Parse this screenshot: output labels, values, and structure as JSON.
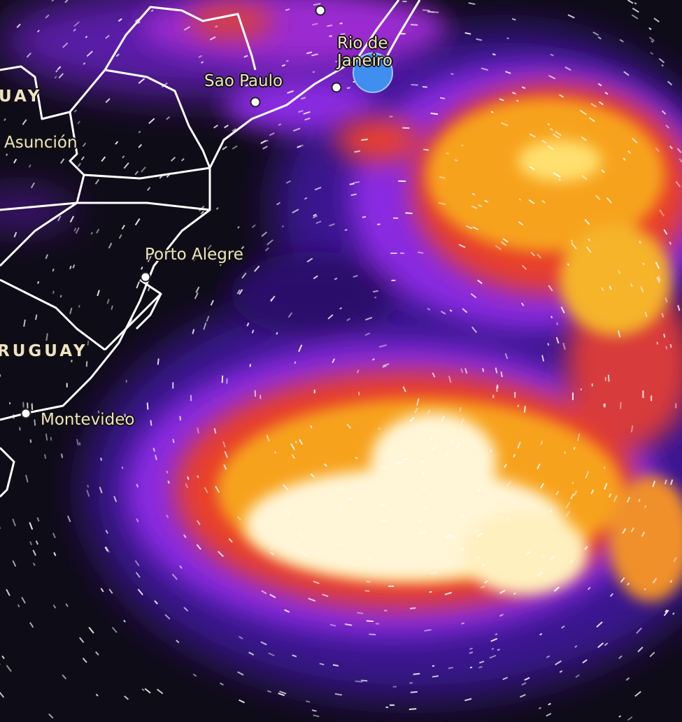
{
  "map": {
    "layer": "precipitation-wind",
    "colors": {
      "background": "#0e0c16",
      "low": "#3a1590",
      "mid": "#8a2be2",
      "high": "#e8402a",
      "higher": "#f7a21b",
      "peak": "#fff6d8",
      "borders": "#ffffff",
      "label": "#efe3c4",
      "location_marker": "#3f8ef0"
    },
    "countries": [
      {
        "id": "paraguay",
        "label": "UAY"
      },
      {
        "id": "uruguay",
        "label": "RUGUAY"
      }
    ],
    "cities": [
      {
        "id": "rio",
        "label_line1": "Rio de",
        "label_line2": "Janeiro"
      },
      {
        "id": "sao-paulo",
        "label": "Sao Paulo"
      },
      {
        "id": "asuncion",
        "label": "Asunción"
      },
      {
        "id": "porto-alegre",
        "label": "Porto Alegre"
      },
      {
        "id": "montevideo",
        "label": "Montevideo"
      }
    ]
  }
}
